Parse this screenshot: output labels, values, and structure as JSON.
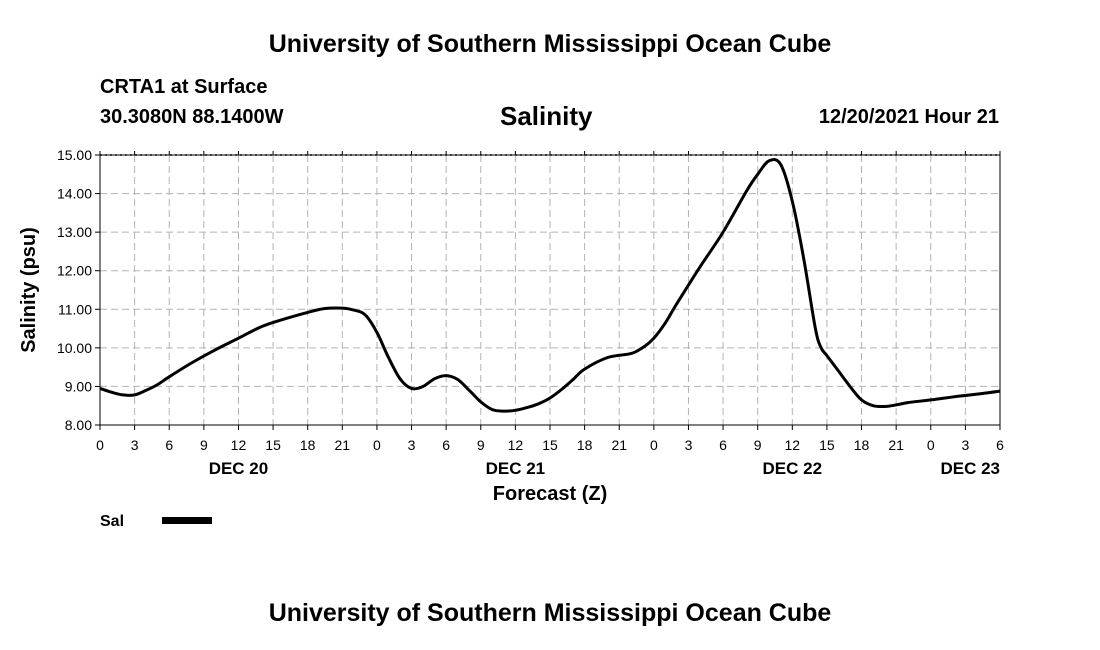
{
  "header": {
    "title": "University of Southern Mississippi Ocean Cube",
    "station": "CRTA1 at Surface",
    "coords": "30.3080N  88.1400W",
    "datetime": "12/20/2021 Hour 21"
  },
  "footer": {
    "title": "University of Southern Mississippi Ocean Cube"
  },
  "chart_data": {
    "type": "line",
    "title": "Salinity",
    "xlabel": "Forecast (Z)",
    "ylabel": "Salinity (psu)",
    "ylim": [
      8.0,
      15.0
    ],
    "yticks": [
      "8.00",
      "9.00",
      "10.00",
      "11.00",
      "12.00",
      "13.00",
      "14.00",
      "15.00"
    ],
    "x_unit": "hours since DEC 20 00Z",
    "xlim": [
      0,
      78
    ],
    "xtick_labels": [
      "0",
      "3",
      "6",
      "9",
      "12",
      "15",
      "18",
      "21",
      "0",
      "3",
      "6",
      "9",
      "12",
      "15",
      "18",
      "21",
      "0",
      "3",
      "6",
      "9",
      "12",
      "15",
      "18",
      "21",
      "0",
      "3",
      "6"
    ],
    "day_labels": [
      {
        "label": "DEC 20",
        "hour": 12
      },
      {
        "label": "DEC 21",
        "hour": 36
      },
      {
        "label": "DEC 22",
        "hour": 60
      },
      {
        "label": "DEC 23",
        "hour": 78
      }
    ],
    "grid": true,
    "legend": "bottom-left",
    "series": [
      {
        "name": "Sal",
        "color": "#000000",
        "x": [
          0,
          1,
          2,
          3,
          4,
          5,
          6,
          8,
          10,
          12,
          14,
          16,
          18,
          19.5,
          21,
          22,
          23,
          24,
          25,
          26,
          27,
          28,
          29,
          30,
          31,
          32,
          33,
          34,
          35,
          36,
          37,
          38,
          39,
          40,
          41,
          42,
          44,
          46,
          47,
          48,
          49,
          50,
          52,
          54,
          56,
          57,
          58,
          59,
          60,
          61,
          62,
          62.5,
          63,
          64,
          65,
          66,
          67,
          68,
          69,
          70,
          72,
          74,
          76,
          78
        ],
        "values": [
          8.95,
          8.85,
          8.78,
          8.78,
          8.9,
          9.05,
          9.25,
          9.62,
          9.95,
          10.25,
          10.55,
          10.75,
          10.92,
          11.02,
          11.03,
          10.98,
          10.85,
          10.4,
          9.75,
          9.2,
          8.95,
          9.0,
          9.2,
          9.28,
          9.18,
          8.9,
          8.6,
          8.4,
          8.36,
          8.38,
          8.45,
          8.55,
          8.7,
          8.92,
          9.18,
          9.45,
          9.75,
          9.85,
          10.0,
          10.25,
          10.65,
          11.15,
          12.1,
          13.0,
          14.05,
          14.5,
          14.85,
          14.75,
          13.8,
          12.3,
          10.5,
          10.0,
          9.8,
          9.4,
          9.0,
          8.65,
          8.5,
          8.48,
          8.52,
          8.58,
          8.65,
          8.73,
          8.8,
          8.88
        ]
      }
    ]
  }
}
